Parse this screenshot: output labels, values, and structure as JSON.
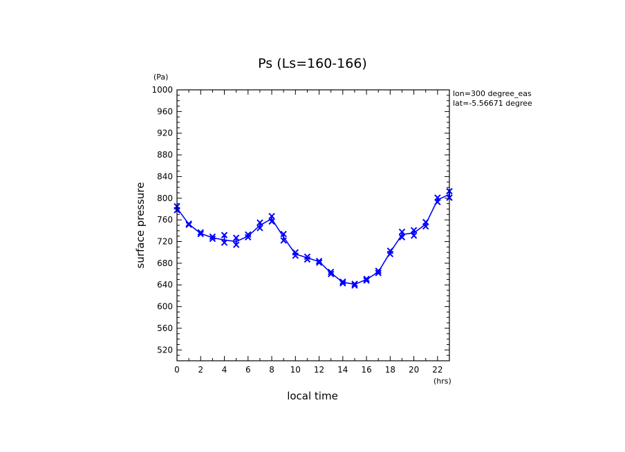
{
  "chart_data": {
    "type": "line",
    "title": "Ps (Ls=160-166)",
    "xlabel": "local time",
    "ylabel": "surface pressure",
    "xunit": "(hrs)",
    "yunit": "(Pa)",
    "xlim": [
      0,
      23
    ],
    "ylim": [
      500,
      1000
    ],
    "xticks": [
      0,
      2,
      4,
      6,
      8,
      10,
      12,
      14,
      16,
      18,
      20,
      22
    ],
    "yticks": [
      520,
      560,
      600,
      640,
      680,
      720,
      760,
      800,
      840,
      880,
      920,
      960,
      1000
    ],
    "annotations": [
      "lon=300 degree_eas",
      "lat=-5.56671 degree"
    ],
    "grid": false,
    "color": "#0000ff",
    "series": [
      {
        "x": [
          0,
          1,
          2,
          3,
          4,
          5,
          6,
          7,
          8,
          9,
          10,
          11,
          12,
          13,
          14,
          15,
          16,
          17,
          18,
          19,
          20,
          21,
          22,
          23
        ],
        "values": [
          782,
          752,
          735,
          727,
          723,
          720,
          730,
          750,
          762,
          728,
          697,
          690,
          683,
          662,
          645,
          641,
          650,
          664,
          700,
          733,
          736,
          752,
          797,
          807
        ],
        "markers": [
          [
            785,
            778
          ],
          [
            753,
            751
          ],
          [
            737,
            734
          ],
          [
            729,
            725
          ],
          [
            732,
            718
          ],
          [
            727,
            714
          ],
          [
            733,
            728
          ],
          [
            755,
            745
          ],
          [
            767,
            757
          ],
          [
            734,
            722
          ],
          [
            700,
            694
          ],
          [
            692,
            687
          ],
          [
            684,
            681
          ],
          [
            664,
            660
          ],
          [
            646,
            643
          ],
          [
            642,
            639
          ],
          [
            651,
            648
          ],
          [
            666,
            662
          ],
          [
            703,
            697
          ],
          [
            738,
            728
          ],
          [
            741,
            731
          ],
          [
            756,
            748
          ],
          [
            801,
            793
          ],
          [
            813,
            801
          ]
        ]
      }
    ]
  }
}
